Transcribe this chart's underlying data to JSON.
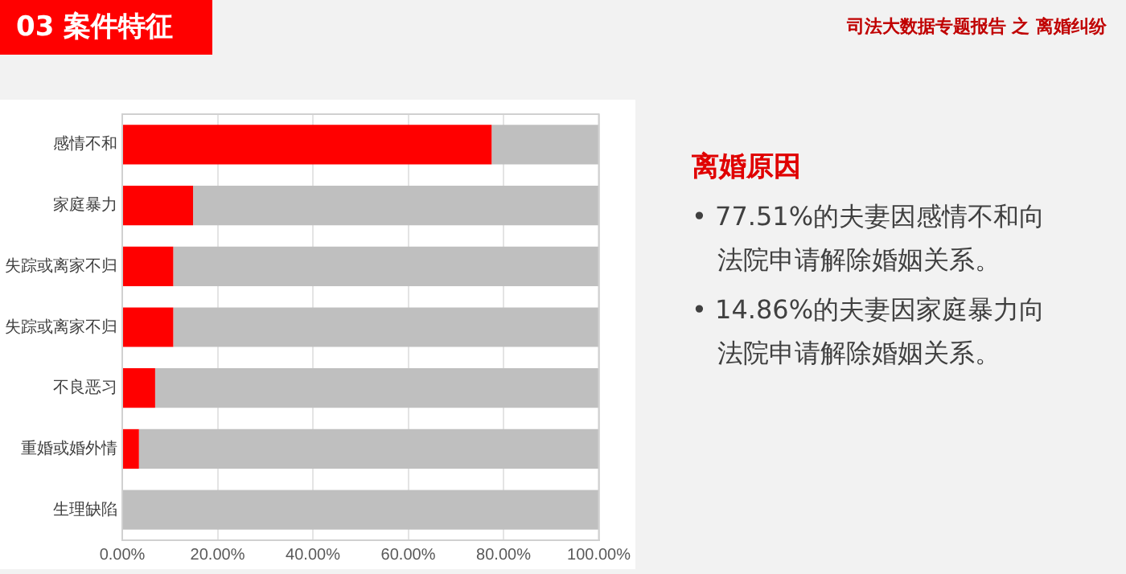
{
  "chart_data": {
    "type": "bar",
    "title": "03 案件特征",
    "subtitle": "司法大数据专题报告 之 离婚纠纷",
    "orientation": "horizontal",
    "stacked": true,
    "categories": [
      "感情不和",
      "家庭暴力",
      "失踪或离家不归",
      "失踪或离家不归",
      "不良恶习",
      "重婚或婚外情",
      "生理缺陷"
    ],
    "series": [
      {
        "color": "#ff0000",
        "values": [
          77.51,
          14.86,
          10.7,
          10.7,
          6.9,
          3.5,
          0
        ]
      },
      {
        "color": "#bfbfbf",
        "values": [
          22.5,
          85.1,
          89.3,
          89.3,
          93.1,
          96.5,
          100
        ]
      }
    ],
    "xlim": [
      0,
      100
    ],
    "xticks": [
      {
        "value": 0,
        "label": "0.00%"
      },
      {
        "value": 20,
        "label": "20.00%"
      },
      {
        "value": 40,
        "label": "40.00%"
      },
      {
        "value": 60,
        "label": "60.00%"
      },
      {
        "value": 80,
        "label": "80.00%"
      },
      {
        "value": 100,
        "label": "100.00%"
      }
    ],
    "grid": "x",
    "legend": false,
    "annotations": [
      "离婚原因",
      "• 77.51%的夫妻因感情不和向法院申请解除婚姻关系。",
      "• 14.86%的夫妻因家庭暴力向法院申请解除婚姻关系。"
    ]
  }
}
